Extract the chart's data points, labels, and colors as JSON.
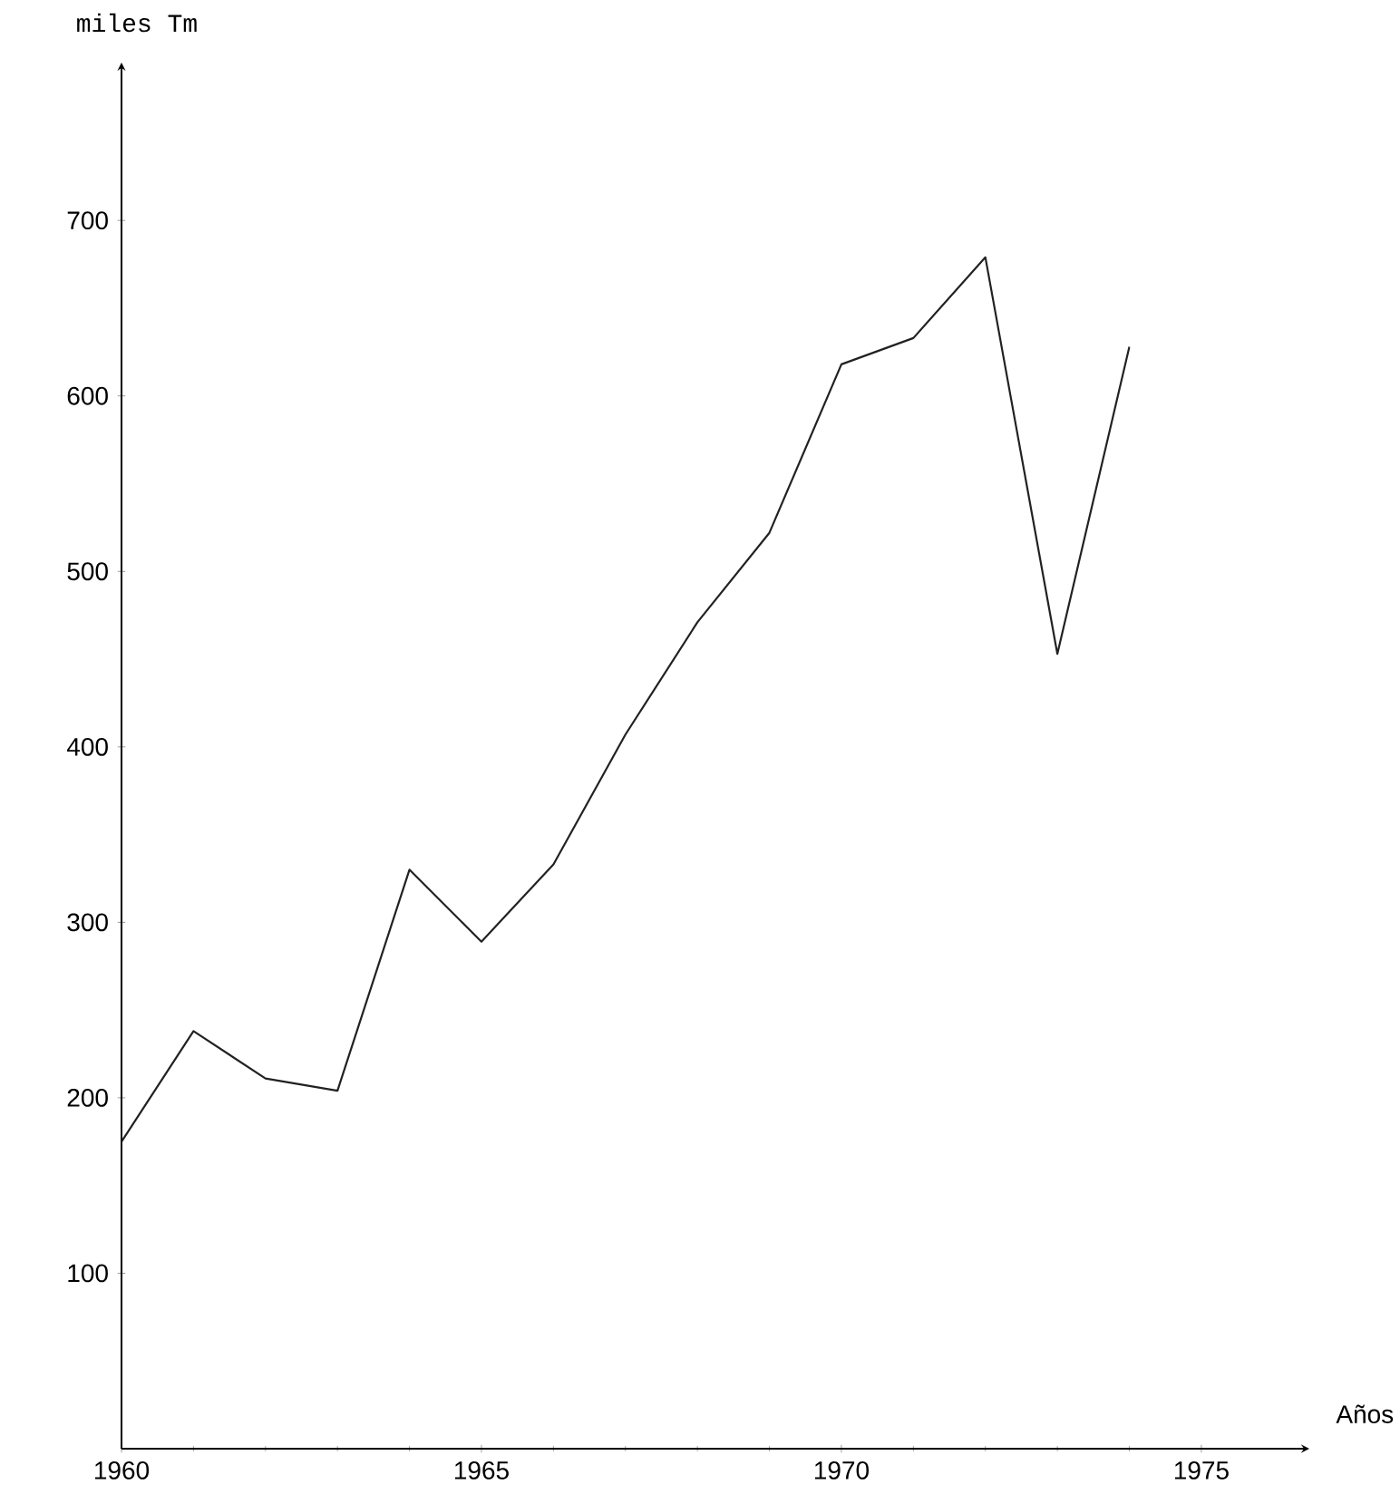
{
  "chart_data": {
    "type": "line",
    "xlabel": "Años",
    "ylabel": "miles Tm",
    "color": "#222222",
    "x": [
      1960,
      1961,
      1962,
      1963,
      1964,
      1965,
      1966,
      1967,
      1968,
      1969,
      1970,
      1971,
      1972,
      1973,
      1974
    ],
    "values": [
      175,
      238,
      211,
      204,
      330,
      289,
      333,
      407,
      471,
      522,
      618,
      633,
      679,
      453,
      628
    ],
    "xlim": [
      1960,
      1976.5
    ],
    "ylim": [
      0,
      790
    ],
    "xticks": [
      1960,
      1965,
      1970,
      1975
    ],
    "yticks": [
      100,
      200,
      300,
      400,
      500,
      600,
      700
    ]
  }
}
